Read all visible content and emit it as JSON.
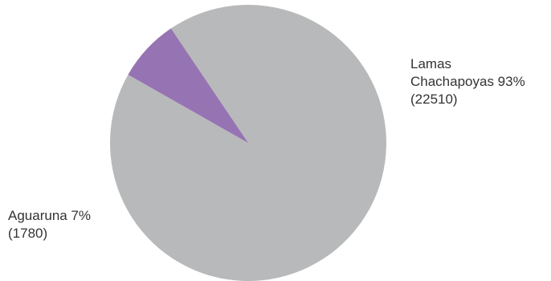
{
  "chart_data": {
    "type": "pie",
    "title": "",
    "legend": "none",
    "slices": [
      {
        "label": "Lamas Chachapoyas",
        "label_lines": [
          "Lamas",
          "Chachapoyas 93%",
          "(22510)"
        ],
        "value": 22510,
        "percent": 93,
        "color": "#b8b9ba"
      },
      {
        "label": "Aguaruna",
        "label_lines": [
          "Aguaruna 7%",
          "(1780)"
        ],
        "value": 1780,
        "percent": 7,
        "color": "#9673b3"
      }
    ]
  }
}
